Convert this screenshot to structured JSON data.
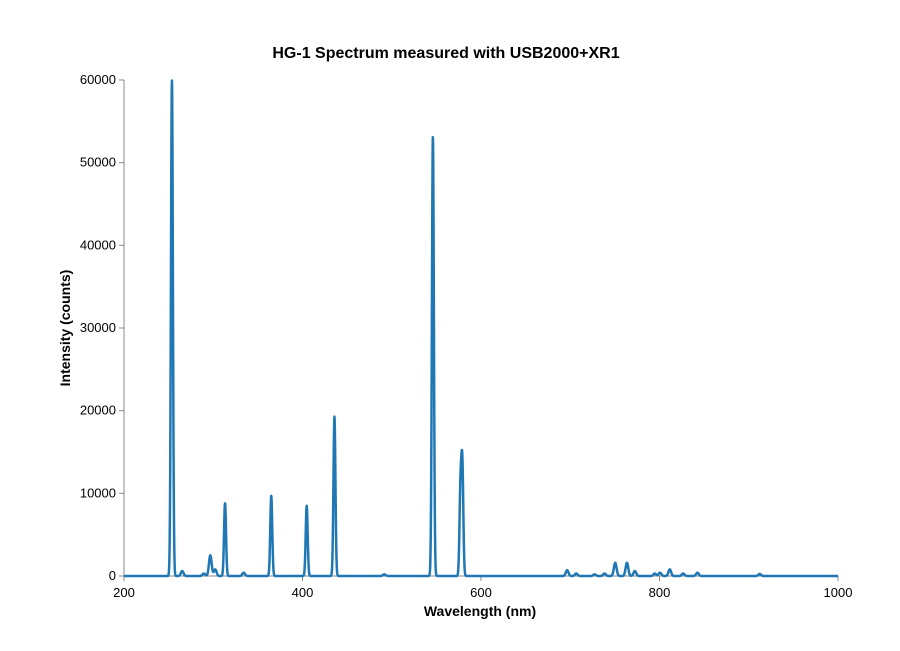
{
  "chart_data": {
    "type": "line",
    "title": "HG-1 Spectrum measured with USB2000+XR1",
    "xlabel": "Wavelength (nm)",
    "ylabel": "Intensity (counts)",
    "xlim": [
      200,
      1000
    ],
    "ylim": [
      0,
      60000
    ],
    "xticks": [
      "200",
      "400",
      "600",
      "800",
      "1000"
    ],
    "yticks": [
      "0",
      "10000",
      "20000",
      "30000",
      "40000",
      "50000",
      "60000"
    ],
    "grid": false,
    "legend": "none",
    "series_color": "#1f77b4",
    "peaks": [
      {
        "x": 253.7,
        "y": 60000
      },
      {
        "x": 265.2,
        "y": 600
      },
      {
        "x": 289.4,
        "y": 300
      },
      {
        "x": 296.7,
        "y": 2500
      },
      {
        "x": 302.2,
        "y": 800
      },
      {
        "x": 313.2,
        "y": 8800
      },
      {
        "x": 334.1,
        "y": 400
      },
      {
        "x": 365.0,
        "y": 9700
      },
      {
        "x": 404.7,
        "y": 8500
      },
      {
        "x": 435.8,
        "y": 19300
      },
      {
        "x": 491.6,
        "y": 200
      },
      {
        "x": 546.1,
        "y": 53300
      },
      {
        "x": 577.0,
        "y": 10200
      },
      {
        "x": 579.1,
        "y": 13000
      },
      {
        "x": 696.5,
        "y": 700
      },
      {
        "x": 706.7,
        "y": 300
      },
      {
        "x": 727.3,
        "y": 200
      },
      {
        "x": 738.4,
        "y": 300
      },
      {
        "x": 750.4,
        "y": 1600
      },
      {
        "x": 763.5,
        "y": 1600
      },
      {
        "x": 772.4,
        "y": 600
      },
      {
        "x": 794.8,
        "y": 300
      },
      {
        "x": 800.6,
        "y": 400
      },
      {
        "x": 811.5,
        "y": 800
      },
      {
        "x": 826.5,
        "y": 300
      },
      {
        "x": 842.5,
        "y": 400
      },
      {
        "x": 912.3,
        "y": 250
      }
    ]
  }
}
